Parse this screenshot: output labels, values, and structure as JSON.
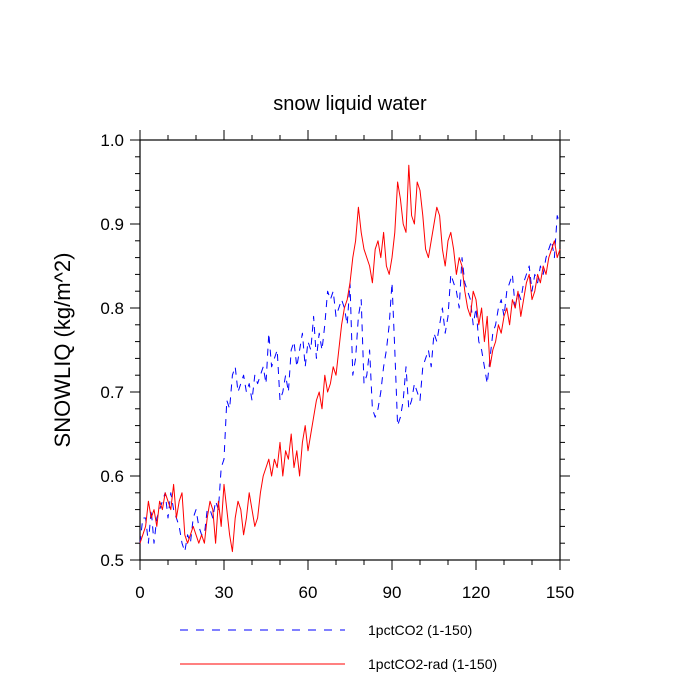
{
  "chart_data": {
    "type": "line",
    "title": "snow liquid water",
    "xlabel": "",
    "ylabel": "SNOWLIQ  (kg/m^2)",
    "xlim": [
      0,
      150
    ],
    "ylim": [
      0.5,
      1.0
    ],
    "xticks": [
      0,
      30,
      60,
      90,
      120,
      150
    ],
    "xtick_labels": [
      "0",
      "30",
      "60",
      "90",
      "120",
      "150"
    ],
    "yticks": [
      0.5,
      0.6,
      0.7,
      0.8,
      0.9,
      1.0
    ],
    "ytick_labels": [
      "0.5",
      "0.6",
      "0.7",
      "0.8",
      "0.9",
      "1.0"
    ],
    "grid": false,
    "legend_position": "bottom",
    "series": [
      {
        "name": "1pctCO2 (1-150)",
        "color": "#0000ff",
        "dash": "dashed",
        "x": [
          0,
          1,
          2,
          3,
          4,
          5,
          6,
          7,
          8,
          9,
          10,
          11,
          12,
          13,
          14,
          15,
          16,
          17,
          18,
          19,
          20,
          21,
          22,
          23,
          24,
          25,
          26,
          27,
          28,
          29,
          30,
          31,
          32,
          33,
          34,
          35,
          36,
          37,
          38,
          39,
          40,
          41,
          42,
          43,
          44,
          45,
          46,
          47,
          48,
          49,
          50,
          51,
          52,
          53,
          54,
          55,
          56,
          57,
          58,
          59,
          60,
          61,
          62,
          63,
          64,
          65,
          66,
          67,
          68,
          69,
          70,
          71,
          72,
          73,
          74,
          75,
          76,
          77,
          78,
          79,
          80,
          81,
          82,
          83,
          84,
          85,
          86,
          87,
          88,
          89,
          90,
          91,
          92,
          93,
          94,
          95,
          96,
          97,
          98,
          99,
          100,
          101,
          102,
          103,
          104,
          105,
          106,
          107,
          108,
          109,
          110,
          111,
          112,
          113,
          114,
          115,
          116,
          117,
          118,
          119,
          120,
          121,
          122,
          123,
          124,
          125,
          126,
          127,
          128,
          129,
          130,
          131,
          132,
          133,
          134,
          135,
          136,
          137,
          138,
          139,
          140,
          141,
          142,
          143,
          144,
          145,
          146,
          147,
          148,
          149,
          150
        ],
        "y": [
          0.52,
          0.55,
          0.55,
          0.52,
          0.56,
          0.52,
          0.55,
          0.56,
          0.57,
          0.58,
          0.55,
          0.58,
          0.56,
          0.55,
          0.54,
          0.52,
          0.51,
          0.53,
          0.52,
          0.55,
          0.56,
          0.54,
          0.53,
          0.53,
          0.56,
          0.56,
          0.55,
          0.57,
          0.56,
          0.61,
          0.62,
          0.69,
          0.68,
          0.72,
          0.73,
          0.7,
          0.71,
          0.72,
          0.7,
          0.71,
          0.69,
          0.72,
          0.71,
          0.72,
          0.73,
          0.71,
          0.77,
          0.73,
          0.74,
          0.75,
          0.69,
          0.7,
          0.72,
          0.7,
          0.75,
          0.76,
          0.73,
          0.75,
          0.77,
          0.73,
          0.76,
          0.75,
          0.79,
          0.74,
          0.77,
          0.75,
          0.78,
          0.82,
          0.81,
          0.82,
          0.79,
          0.8,
          0.81,
          0.8,
          0.78,
          0.83,
          0.72,
          0.74,
          0.79,
          0.81,
          0.71,
          0.72,
          0.75,
          0.68,
          0.67,
          0.68,
          0.7,
          0.73,
          0.75,
          0.78,
          0.83,
          0.75,
          0.66,
          0.67,
          0.69,
          0.73,
          0.68,
          0.69,
          0.71,
          0.7,
          0.69,
          0.73,
          0.74,
          0.75,
          0.73,
          0.77,
          0.76,
          0.78,
          0.8,
          0.77,
          0.79,
          0.84,
          0.83,
          0.82,
          0.8,
          0.86,
          0.83,
          0.82,
          0.81,
          0.78,
          0.8,
          0.76,
          0.75,
          0.73,
          0.71,
          0.74,
          0.77,
          0.78,
          0.8,
          0.81,
          0.79,
          0.82,
          0.83,
          0.84,
          0.8,
          0.82,
          0.81,
          0.83,
          0.84,
          0.85,
          0.82,
          0.84,
          0.83,
          0.85,
          0.84,
          0.86,
          0.87,
          0.88,
          0.86,
          0.91,
          0.9
        ]
      },
      {
        "name": "1pctCO2-rad (1-150)",
        "color": "#ff0000",
        "dash": "solid",
        "x": [
          0,
          1,
          2,
          3,
          4,
          5,
          6,
          7,
          8,
          9,
          10,
          11,
          12,
          13,
          14,
          15,
          16,
          17,
          18,
          19,
          20,
          21,
          22,
          23,
          24,
          25,
          26,
          27,
          28,
          29,
          30,
          31,
          32,
          33,
          34,
          35,
          36,
          37,
          38,
          39,
          40,
          41,
          42,
          43,
          44,
          45,
          46,
          47,
          48,
          49,
          50,
          51,
          52,
          53,
          54,
          55,
          56,
          57,
          58,
          59,
          60,
          61,
          62,
          63,
          64,
          65,
          66,
          67,
          68,
          69,
          70,
          71,
          72,
          73,
          74,
          75,
          76,
          77,
          78,
          79,
          80,
          81,
          82,
          83,
          84,
          85,
          86,
          87,
          88,
          89,
          90,
          91,
          92,
          93,
          94,
          95,
          96,
          97,
          98,
          99,
          100,
          101,
          102,
          103,
          104,
          105,
          106,
          107,
          108,
          109,
          110,
          111,
          112,
          113,
          114,
          115,
          116,
          117,
          118,
          119,
          120,
          121,
          122,
          123,
          124,
          125,
          126,
          127,
          128,
          129,
          130,
          131,
          132,
          133,
          134,
          135,
          136,
          137,
          138,
          139,
          140,
          141,
          142,
          143,
          144,
          145,
          146,
          147,
          148,
          149,
          150
        ],
        "y": [
          0.52,
          0.53,
          0.54,
          0.57,
          0.55,
          0.56,
          0.54,
          0.57,
          0.56,
          0.58,
          0.57,
          0.56,
          0.59,
          0.55,
          0.57,
          0.58,
          0.53,
          0.52,
          0.53,
          0.54,
          0.53,
          0.52,
          0.53,
          0.52,
          0.55,
          0.57,
          0.56,
          0.52,
          0.57,
          0.54,
          0.59,
          0.56,
          0.53,
          0.51,
          0.55,
          0.57,
          0.56,
          0.53,
          0.55,
          0.58,
          0.56,
          0.54,
          0.55,
          0.58,
          0.6,
          0.61,
          0.62,
          0.6,
          0.62,
          0.61,
          0.64,
          0.6,
          0.63,
          0.62,
          0.65,
          0.61,
          0.63,
          0.6,
          0.64,
          0.66,
          0.63,
          0.65,
          0.67,
          0.69,
          0.7,
          0.68,
          0.72,
          0.7,
          0.71,
          0.73,
          0.72,
          0.75,
          0.78,
          0.8,
          0.81,
          0.83,
          0.86,
          0.88,
          0.92,
          0.89,
          0.87,
          0.86,
          0.85,
          0.83,
          0.87,
          0.88,
          0.86,
          0.89,
          0.85,
          0.84,
          0.86,
          0.89,
          0.95,
          0.93,
          0.9,
          0.89,
          0.97,
          0.91,
          0.9,
          0.95,
          0.94,
          0.91,
          0.87,
          0.86,
          0.88,
          0.9,
          0.92,
          0.91,
          0.87,
          0.85,
          0.88,
          0.89,
          0.87,
          0.84,
          0.86,
          0.85,
          0.82,
          0.8,
          0.79,
          0.82,
          0.81,
          0.78,
          0.8,
          0.76,
          0.79,
          0.73,
          0.75,
          0.76,
          0.78,
          0.77,
          0.79,
          0.8,
          0.78,
          0.81,
          0.8,
          0.82,
          0.79,
          0.81,
          0.83,
          0.84,
          0.81,
          0.82,
          0.84,
          0.83,
          0.85,
          0.84,
          0.86,
          0.87,
          0.88,
          0.86,
          0.87
        ]
      }
    ]
  }
}
